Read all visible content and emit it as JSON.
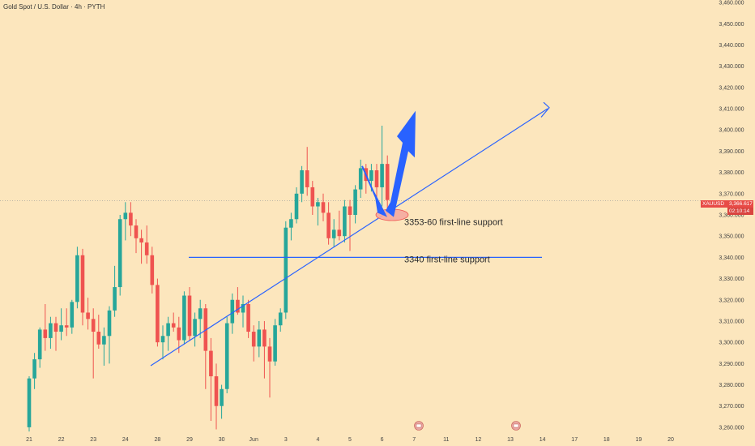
{
  "header": {
    "title": "Gold Spot / U.S. Dollar · 4h · PYTH"
  },
  "colors": {
    "background": "#fce6bd",
    "bull": "#26a69a",
    "bear": "#ef5350",
    "annotation": "#2962ff",
    "support_ellipse": "#f4a9a0",
    "tag_bg": "#e84b47",
    "tag_bg2": "#d9443f"
  },
  "price_tag": {
    "symbol": "XAUUSD",
    "price": "3,366.617",
    "countdown": "02:10:14"
  },
  "chart_data": {
    "type": "candlestick",
    "title": "Gold Spot / U.S. Dollar · 4h · PYTH",
    "ylim": [
      3255,
      3465
    ],
    "y_ticks": [
      "3,260.000",
      "3,270.000",
      "3,280.000",
      "3,290.000",
      "3,300.000",
      "3,310.000",
      "3,320.000",
      "3,330.000",
      "3,340.000",
      "3,350.000",
      "3,360.000",
      "3,370.000",
      "3,380.000",
      "3,390.000",
      "3,400.000",
      "3,410.000",
      "3,420.000",
      "3,430.000",
      "3,440.000",
      "3,450.000",
      "3,460.000"
    ],
    "y_tick_values": [
      3260,
      3270,
      3280,
      3290,
      3300,
      3310,
      3320,
      3330,
      3340,
      3350,
      3360,
      3370,
      3380,
      3390,
      3400,
      3410,
      3420,
      3430,
      3440,
      3450,
      3460
    ],
    "x_ticks": [
      "20",
      "21",
      "22",
      "23",
      "24",
      "28",
      "29",
      "30",
      "Jun",
      "3",
      "4",
      "5",
      "6",
      "7",
      "11",
      "12",
      "13",
      "14",
      "17",
      "18",
      "19",
      "20"
    ],
    "x_tick_bars": [
      -6,
      0,
      6,
      12,
      18,
      24,
      30,
      36,
      42,
      48,
      54,
      60,
      66,
      72,
      78,
      84,
      90,
      96,
      102,
      108,
      114,
      120
    ],
    "grid": false,
    "current_price": 3366.617,
    "candles": [
      {
        "o": 3260,
        "h": 3284,
        "l": 3258,
        "c": 3283
      },
      {
        "o": 3283,
        "h": 3295,
        "l": 3278,
        "c": 3292
      },
      {
        "o": 3292,
        "h": 3307,
        "l": 3288,
        "c": 3306
      },
      {
        "o": 3306,
        "h": 3318,
        "l": 3296,
        "c": 3302
      },
      {
        "o": 3302,
        "h": 3312,
        "l": 3297,
        "c": 3309
      },
      {
        "o": 3309,
        "h": 3312,
        "l": 3296,
        "c": 3305
      },
      {
        "o": 3305,
        "h": 3316,
        "l": 3301,
        "c": 3308
      },
      {
        "o": 3308,
        "h": 3316,
        "l": 3303,
        "c": 3307
      },
      {
        "o": 3307,
        "h": 3320,
        "l": 3304,
        "c": 3319
      },
      {
        "o": 3319,
        "h": 3345,
        "l": 3316,
        "c": 3341
      },
      {
        "o": 3341,
        "h": 3344,
        "l": 3308,
        "c": 3314
      },
      {
        "o": 3314,
        "h": 3321,
        "l": 3306,
        "c": 3311
      },
      {
        "o": 3311,
        "h": 3316,
        "l": 3283,
        "c": 3305
      },
      {
        "o": 3305,
        "h": 3313,
        "l": 3297,
        "c": 3299
      },
      {
        "o": 3299,
        "h": 3307,
        "l": 3289,
        "c": 3303
      },
      {
        "o": 3303,
        "h": 3317,
        "l": 3290,
        "c": 3315
      },
      {
        "o": 3315,
        "h": 3336,
        "l": 3312,
        "c": 3326
      },
      {
        "o": 3326,
        "h": 3360,
        "l": 3322,
        "c": 3358
      },
      {
        "o": 3358,
        "h": 3366,
        "l": 3348,
        "c": 3361
      },
      {
        "o": 3361,
        "h": 3366,
        "l": 3350,
        "c": 3355
      },
      {
        "o": 3355,
        "h": 3358,
        "l": 3342,
        "c": 3349
      },
      {
        "o": 3349,
        "h": 3353,
        "l": 3337,
        "c": 3347
      },
      {
        "o": 3347,
        "h": 3355,
        "l": 3337,
        "c": 3341
      },
      {
        "o": 3341,
        "h": 3345,
        "l": 3323,
        "c": 3327
      },
      {
        "o": 3327,
        "h": 3330,
        "l": 3298,
        "c": 3300
      },
      {
        "o": 3300,
        "h": 3308,
        "l": 3292,
        "c": 3303
      },
      {
        "o": 3303,
        "h": 3312,
        "l": 3296,
        "c": 3309
      },
      {
        "o": 3309,
        "h": 3314,
        "l": 3305,
        "c": 3307
      },
      {
        "o": 3307,
        "h": 3312,
        "l": 3295,
        "c": 3301
      },
      {
        "o": 3301,
        "h": 3324,
        "l": 3299,
        "c": 3322
      },
      {
        "o": 3322,
        "h": 3326,
        "l": 3301,
        "c": 3303
      },
      {
        "o": 3303,
        "h": 3314,
        "l": 3298,
        "c": 3311
      },
      {
        "o": 3311,
        "h": 3320,
        "l": 3302,
        "c": 3316
      },
      {
        "o": 3316,
        "h": 3318,
        "l": 3278,
        "c": 3296
      },
      {
        "o": 3296,
        "h": 3302,
        "l": 3263,
        "c": 3284
      },
      {
        "o": 3284,
        "h": 3290,
        "l": 3259,
        "c": 3270
      },
      {
        "o": 3270,
        "h": 3280,
        "l": 3264,
        "c": 3278
      },
      {
        "o": 3278,
        "h": 3312,
        "l": 3276,
        "c": 3309
      },
      {
        "o": 3309,
        "h": 3323,
        "l": 3304,
        "c": 3320
      },
      {
        "o": 3320,
        "h": 3326,
        "l": 3313,
        "c": 3314
      },
      {
        "o": 3314,
        "h": 3322,
        "l": 3307,
        "c": 3318
      },
      {
        "o": 3318,
        "h": 3320,
        "l": 3302,
        "c": 3305
      },
      {
        "o": 3305,
        "h": 3308,
        "l": 3291,
        "c": 3298
      },
      {
        "o": 3298,
        "h": 3310,
        "l": 3293,
        "c": 3306
      },
      {
        "o": 3306,
        "h": 3310,
        "l": 3283,
        "c": 3298
      },
      {
        "o": 3298,
        "h": 3302,
        "l": 3274,
        "c": 3291
      },
      {
        "o": 3291,
        "h": 3311,
        "l": 3289,
        "c": 3308
      },
      {
        "o": 3308,
        "h": 3316,
        "l": 3305,
        "c": 3314
      },
      {
        "o": 3314,
        "h": 3357,
        "l": 3311,
        "c": 3354
      },
      {
        "o": 3354,
        "h": 3361,
        "l": 3348,
        "c": 3358
      },
      {
        "o": 3358,
        "h": 3373,
        "l": 3356,
        "c": 3370
      },
      {
        "o": 3370,
        "h": 3383,
        "l": 3366,
        "c": 3381
      },
      {
        "o": 3381,
        "h": 3392,
        "l": 3369,
        "c": 3373
      },
      {
        "o": 3373,
        "h": 3376,
        "l": 3360,
        "c": 3364
      },
      {
        "o": 3364,
        "h": 3368,
        "l": 3355,
        "c": 3366
      },
      {
        "o": 3366,
        "h": 3370,
        "l": 3357,
        "c": 3361
      },
      {
        "o": 3361,
        "h": 3366,
        "l": 3346,
        "c": 3349
      },
      {
        "o": 3349,
        "h": 3358,
        "l": 3345,
        "c": 3353
      },
      {
        "o": 3353,
        "h": 3362,
        "l": 3348,
        "c": 3350
      },
      {
        "o": 3350,
        "h": 3367,
        "l": 3347,
        "c": 3364
      },
      {
        "o": 3364,
        "h": 3367,
        "l": 3343,
        "c": 3360
      },
      {
        "o": 3360,
        "h": 3374,
        "l": 3356,
        "c": 3372
      },
      {
        "o": 3372,
        "h": 3386,
        "l": 3368,
        "c": 3382
      },
      {
        "o": 3382,
        "h": 3384,
        "l": 3370,
        "c": 3376
      },
      {
        "o": 3376,
        "h": 3384,
        "l": 3371,
        "c": 3381
      },
      {
        "o": 3381,
        "h": 3384,
        "l": 3366,
        "c": 3373
      },
      {
        "o": 3373,
        "h": 3402,
        "l": 3364,
        "c": 3384
      },
      {
        "o": 3384,
        "h": 3388,
        "l": 3363,
        "c": 3367
      }
    ],
    "support_lines": [
      {
        "label": "3353-60 first-line support",
        "price": 3357
      },
      {
        "label": "3340 first-line support",
        "price": 3340
      }
    ]
  }
}
